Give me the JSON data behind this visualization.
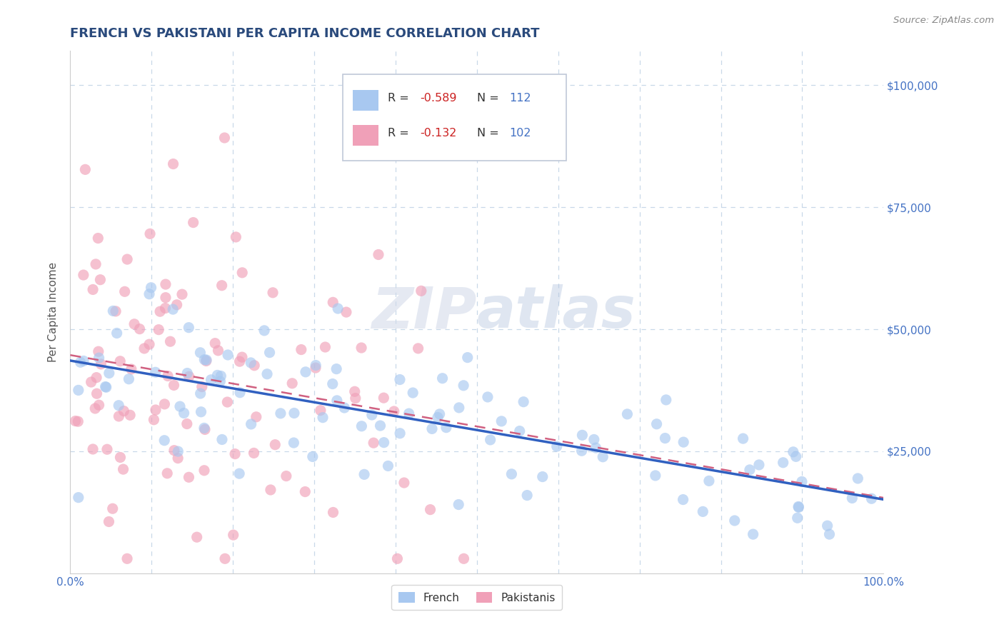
{
  "title": "FRENCH VS PAKISTANI PER CAPITA INCOME CORRELATION CHART",
  "source_text": "Source: ZipAtlas.com",
  "ylabel": "Per Capita Income",
  "xlim": [
    0,
    1
  ],
  "ylim": [
    0,
    107000
  ],
  "x_ticks": [
    0,
    0.1,
    0.2,
    0.3,
    0.4,
    0.5,
    0.6,
    0.7,
    0.8,
    0.9,
    1.0
  ],
  "x_tick_labels": [
    "0.0%",
    "",
    "",
    "",
    "",
    "",
    "",
    "",
    "",
    "",
    "100.0%"
  ],
  "y_ticks": [
    0,
    25000,
    50000,
    75000,
    100000
  ],
  "y_tick_labels_right": [
    "",
    "$25,000",
    "$50,000",
    "$75,000",
    "$100,000"
  ],
  "french_color": "#a8c8f0",
  "french_line_color": "#3060c0",
  "pakistani_color": "#f0a0b8",
  "pakistani_line_color": "#d06080",
  "french_R": "-0.589",
  "french_N": "112",
  "pakistani_R": "-0.132",
  "pakistani_N": "102",
  "watermark_zip": "ZIP",
  "watermark_atlas": "atlas",
  "background_color": "#ffffff",
  "grid_color": "#c8d8e8",
  "legend_label_french": "French",
  "legend_label_pakistani": "Pakistanis",
  "title_color": "#2a4a7c",
  "axis_label_color": "#4472c4",
  "source_color": "#888888"
}
